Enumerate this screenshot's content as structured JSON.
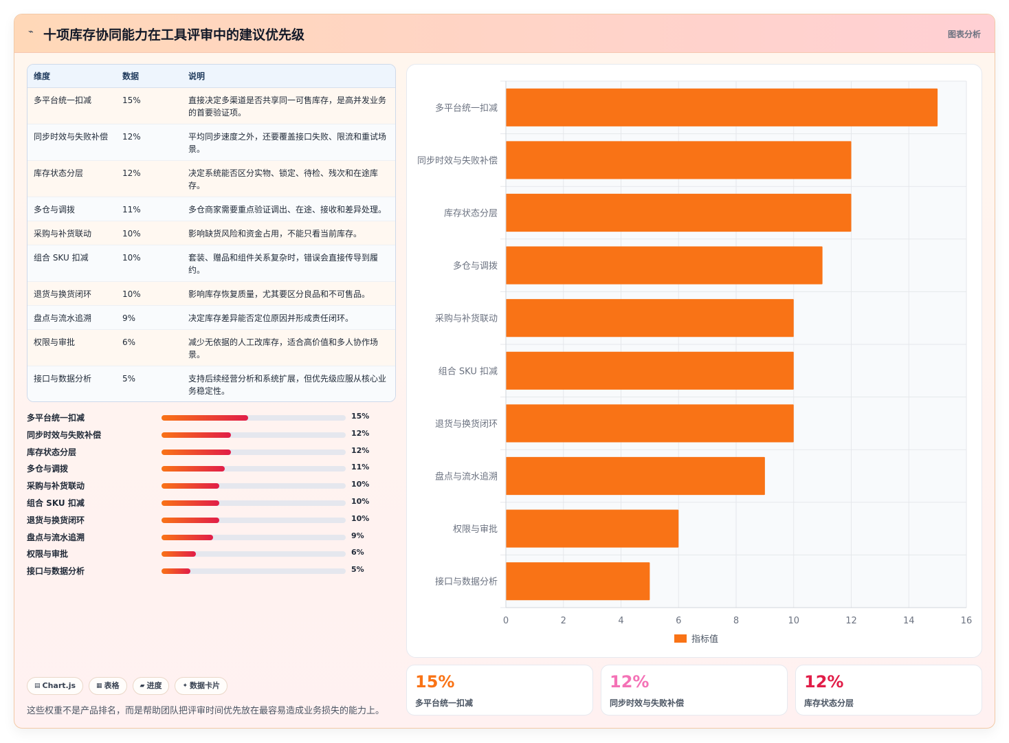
{
  "header": {
    "title": "十项库存协同能力在工具评审中的建议优先级",
    "tag": "图表分析",
    "title_icon": "chart-line-icon"
  },
  "table": {
    "headers": [
      "维度",
      "数据",
      "说明"
    ],
    "rows": [
      {
        "dim": "多平台统一扣减",
        "value": "15%",
        "desc": "直接决定多渠道是否共享同一可售库存，是高并发业务的首要验证项。"
      },
      {
        "dim": "同步时效与失败补偿",
        "value": "12%",
        "desc": "平均同步速度之外，还要覆盖接口失败、限流和重试场景。"
      },
      {
        "dim": "库存状态分层",
        "value": "12%",
        "desc": "决定系统能否区分实物、锁定、待检、残次和在途库存。"
      },
      {
        "dim": "多仓与调拨",
        "value": "11%",
        "desc": "多仓商家需要重点验证调出、在途、接收和差异处理。"
      },
      {
        "dim": "采购与补货联动",
        "value": "10%",
        "desc": "影响缺货风险和资金占用，不能只看当前库存。"
      },
      {
        "dim": "组合 SKU 扣减",
        "value": "10%",
        "desc": "套装、赠品和组件关系复杂时，错误会直接传导到履约。"
      },
      {
        "dim": "退货与换货闭环",
        "value": "10%",
        "desc": "影响库存恢复质量，尤其要区分良品和不可售品。"
      },
      {
        "dim": "盘点与流水追溯",
        "value": "9%",
        "desc": "决定库存差异能否定位原因并形成责任闭环。"
      },
      {
        "dim": "权限与审批",
        "value": "6%",
        "desc": "减少无依据的人工改库存，适合高价值和多人协作场景。"
      },
      {
        "dim": "接口与数据分析",
        "value": "5%",
        "desc": "支持后续经营分析和系统扩展，但优先级应服从核心业务稳定性。"
      }
    ]
  },
  "progress": [
    {
      "label": "多平台统一扣减",
      "value": 15,
      "text": "15%"
    },
    {
      "label": "同步时效与失败补偿",
      "value": 12,
      "text": "12%"
    },
    {
      "label": "库存状态分层",
      "value": 12,
      "text": "12%"
    },
    {
      "label": "多仓与调拨",
      "value": 11,
      "text": "11%"
    },
    {
      "label": "采购与补货联动",
      "value": 10,
      "text": "10%"
    },
    {
      "label": "组合 SKU 扣减",
      "value": 10,
      "text": "10%"
    },
    {
      "label": "退货与换货闭环",
      "value": 10,
      "text": "10%"
    },
    {
      "label": "盘点与流水追溯",
      "value": 9,
      "text": "9%"
    },
    {
      "label": "权限与审批",
      "value": 6,
      "text": "6%"
    },
    {
      "label": "接口与数据分析",
      "value": 5,
      "text": "5%"
    }
  ],
  "progress_max": 32,
  "badges": [
    {
      "icon": "chart-icon",
      "glyph": "▤",
      "label": "Chart.js"
    },
    {
      "icon": "table-icon",
      "glyph": "▦",
      "label": "表格"
    },
    {
      "icon": "progress-icon",
      "glyph": "▰",
      "label": "进度"
    },
    {
      "icon": "data-card-icon",
      "glyph": "✦",
      "label": "数据卡片"
    }
  ],
  "footnote": "这些权重不是产品排名，而是帮助团队把评审时间优先放在最容易造成业务损失的能力上。",
  "kpis": [
    {
      "value": "15%",
      "label": "多平台统一扣减",
      "color": "#f97316"
    },
    {
      "value": "12%",
      "label": "同步时效与失败补偿",
      "color": "#f472b6"
    },
    {
      "value": "12%",
      "label": "库存状态分层",
      "color": "#e11d48"
    }
  ],
  "colors": {
    "bar": "#f97316",
    "accent_pink": "#e11d48"
  },
  "chart_data": {
    "type": "bar",
    "orientation": "horizontal",
    "categories": [
      "多平台统一扣减",
      "同步时效与失败补偿",
      "库存状态分层",
      "多仓与调拨",
      "采购与补货联动",
      "组合 SKU 扣减",
      "退货与换货闭环",
      "盘点与流水追溯",
      "权限与审批",
      "接口与数据分析"
    ],
    "series": [
      {
        "name": "指标值",
        "values": [
          15,
          12,
          12,
          11,
          10,
          10,
          10,
          9,
          6,
          5
        ]
      }
    ],
    "xlim": [
      0,
      16
    ],
    "xticks": [
      0,
      2,
      4,
      6,
      8,
      10,
      12,
      14,
      16
    ],
    "grid": true,
    "legend": "bottom",
    "title": "",
    "xlabel": "",
    "ylabel": ""
  }
}
